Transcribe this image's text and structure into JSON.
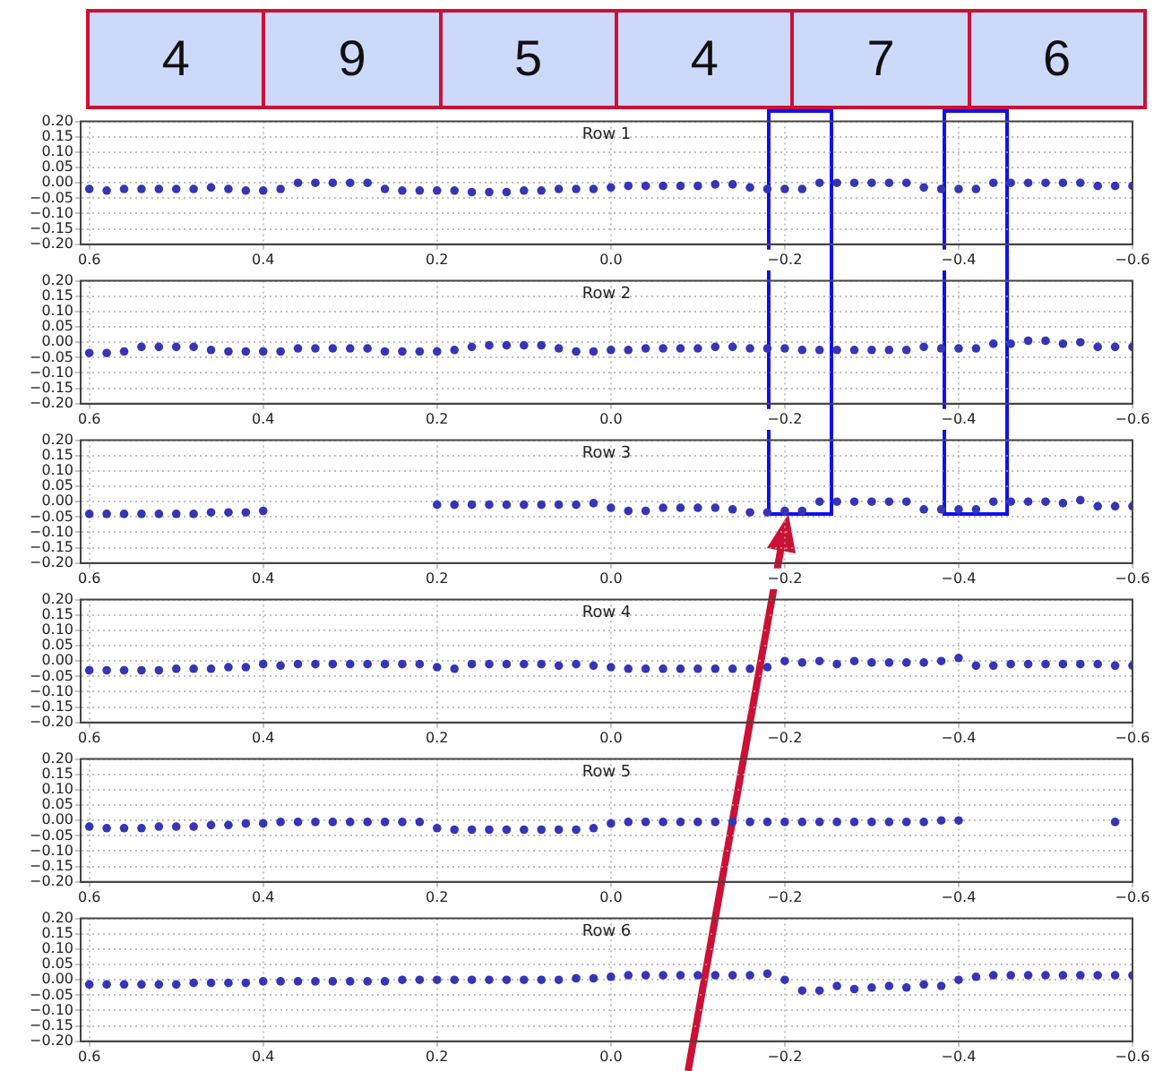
{
  "chart_data": [
    {
      "type": "other",
      "annotations": [
        "4",
        "9",
        "5",
        "4",
        "7",
        "6"
      ]
    },
    {
      "type": "scatter",
      "title": "Row 1",
      "color": "#3535b5",
      "marker": "circle",
      "grid": true,
      "x": [
        0.6,
        0.58,
        0.56,
        0.54,
        0.52,
        0.5,
        0.48,
        0.46,
        0.44,
        0.42,
        0.4,
        0.38,
        0.36,
        0.34,
        0.32,
        0.3,
        0.28,
        0.26,
        0.24,
        0.22,
        0.2,
        0.18,
        0.16,
        0.14,
        0.12,
        0.1,
        0.08,
        0.06,
        0.04,
        0.02,
        0,
        -0.02,
        -0.04,
        -0.06,
        -0.08,
        -0.1,
        -0.12,
        -0.14,
        -0.16,
        -0.18,
        -0.2,
        -0.22,
        -0.24,
        -0.26,
        -0.28,
        -0.3,
        -0.32,
        -0.34,
        -0.36,
        -0.38,
        -0.4,
        -0.42,
        -0.44,
        -0.46,
        -0.48,
        -0.5,
        -0.52,
        -0.54,
        -0.56,
        -0.58,
        -0.6
      ],
      "values": [
        -0.02,
        -0.025,
        -0.02,
        -0.02,
        -0.02,
        -0.02,
        -0.02,
        -0.015,
        -0.02,
        -0.025,
        -0.025,
        -0.02,
        0,
        0,
        0,
        0,
        0,
        -0.02,
        -0.025,
        -0.025,
        -0.025,
        -0.025,
        -0.03,
        -0.03,
        -0.03,
        -0.025,
        -0.025,
        -0.02,
        -0.02,
        -0.02,
        -0.015,
        -0.01,
        -0.01,
        -0.01,
        -0.01,
        -0.01,
        -0.005,
        -0.005,
        -0.015,
        -0.02,
        -0.02,
        -0.02,
        0,
        0,
        0,
        0,
        0,
        0,
        -0.015,
        -0.02,
        -0.02,
        -0.02,
        0,
        0,
        0,
        0,
        0,
        0,
        -0.01,
        -0.01,
        -0.01
      ],
      "xlim": [
        0.61,
        -0.6
      ],
      "xticks": [
        0.6,
        0.4,
        0.2,
        {
          "value": 0,
          "label": "0.0"
        },
        {
          "value": -0.2,
          "label": "−0.2"
        },
        {
          "value": -0.4,
          "label": "−0.4"
        },
        {
          "value": -0.6,
          "label": "−0.6"
        }
      ],
      "ylim": [
        -0.2,
        0.2
      ],
      "yticks": [
        {
          "value": -0.2,
          "label": "−0.20"
        },
        {
          "value": -0.15,
          "label": "−0.15"
        },
        {
          "value": -0.1,
          "label": "−0.10"
        },
        {
          "value": -0.05,
          "label": "−0.05"
        },
        {
          "value": 0,
          "label": "0.00"
        },
        {
          "value": 0.05,
          "label": "0.05"
        },
        {
          "value": 0.1,
          "label": "0.10"
        },
        {
          "value": 0.15,
          "label": "0.15"
        },
        {
          "value": 0.2,
          "label": "0.20"
        }
      ]
    },
    {
      "type": "scatter",
      "title": "Row 2",
      "color": "#3535b5",
      "marker": "circle",
      "grid": true,
      "x": [
        0.6,
        0.58,
        0.56,
        0.54,
        0.52,
        0.5,
        0.48,
        0.46,
        0.44,
        0.42,
        0.4,
        0.38,
        0.36,
        0.34,
        0.32,
        0.3,
        0.28,
        0.26,
        0.24,
        0.22,
        0.2,
        0.18,
        0.16,
        0.14,
        0.12,
        0.1,
        0.08,
        0.06,
        0.04,
        0.02,
        0,
        -0.02,
        -0.04,
        -0.06,
        -0.08,
        -0.1,
        -0.12,
        -0.14,
        -0.16,
        -0.18,
        -0.2,
        -0.22,
        -0.24,
        -0.26,
        -0.28,
        -0.3,
        -0.32,
        -0.34,
        -0.36,
        -0.38,
        -0.4,
        -0.42,
        -0.44,
        -0.46,
        -0.48,
        -0.5,
        -0.52,
        -0.54,
        -0.56,
        -0.58,
        -0.6
      ],
      "values": [
        -0.035,
        -0.035,
        -0.03,
        -0.015,
        -0.015,
        -0.015,
        -0.015,
        -0.025,
        -0.03,
        -0.03,
        -0.03,
        -0.03,
        -0.02,
        -0.02,
        -0.02,
        -0.02,
        -0.02,
        -0.03,
        -0.03,
        -0.03,
        -0.03,
        -0.025,
        -0.015,
        -0.01,
        -0.01,
        -0.01,
        -0.01,
        -0.02,
        -0.03,
        -0.03,
        -0.025,
        -0.025,
        -0.02,
        -0.02,
        -0.02,
        -0.02,
        -0.015,
        -0.015,
        -0.02,
        -0.02,
        -0.02,
        -0.025,
        -0.025,
        -0.025,
        -0.025,
        -0.025,
        -0.025,
        -0.025,
        -0.015,
        -0.02,
        -0.02,
        -0.02,
        -0.005,
        -0.005,
        0.005,
        0.005,
        -0.005,
        0,
        -0.015,
        -0.015,
        -0.015
      ],
      "xlim": [
        0.61,
        -0.6
      ],
      "xticks": [
        0.6,
        0.4,
        0.2,
        {
          "value": 0,
          "label": "0.0"
        },
        {
          "value": -0.2,
          "label": "−0.2"
        },
        {
          "value": -0.4,
          "label": "−0.4"
        },
        {
          "value": -0.6,
          "label": "−0.6"
        }
      ],
      "ylim": [
        -0.2,
        0.2
      ],
      "yticks": [
        {
          "value": -0.2,
          "label": "−0.20"
        },
        {
          "value": -0.15,
          "label": "−0.15"
        },
        {
          "value": -0.1,
          "label": "−0.10"
        },
        {
          "value": -0.05,
          "label": "−0.05"
        },
        {
          "value": 0,
          "label": "0.00"
        },
        {
          "value": 0.05,
          "label": "0.05"
        },
        {
          "value": 0.1,
          "label": "0.10"
        },
        {
          "value": 0.15,
          "label": "0.15"
        },
        {
          "value": 0.2,
          "label": "0.20"
        }
      ]
    },
    {
      "type": "scatter",
      "title": "Row 3",
      "color": "#3535b5",
      "marker": "circle",
      "grid": true,
      "x": [
        0.6,
        0.58,
        0.56,
        0.54,
        0.52,
        0.5,
        0.48,
        0.46,
        0.44,
        0.42,
        0.4,
        0.38,
        0.36,
        0.34,
        0.32,
        0.3,
        0.28,
        0.26,
        0.24,
        0.22,
        0.2,
        0.18,
        0.16,
        0.14,
        0.12,
        0.1,
        0.08,
        0.06,
        0.04,
        0.02,
        0,
        -0.02,
        -0.04,
        -0.06,
        -0.08,
        -0.1,
        -0.12,
        -0.14,
        -0.16,
        -0.18,
        -0.2,
        -0.22,
        -0.24,
        -0.26,
        -0.28,
        -0.3,
        -0.32,
        -0.34,
        -0.36,
        -0.38,
        -0.4,
        -0.42,
        -0.44,
        -0.46,
        -0.48,
        -0.5,
        -0.52,
        -0.54,
        -0.56,
        -0.58,
        -0.6
      ],
      "values": [
        -0.04,
        -0.04,
        -0.04,
        -0.04,
        -0.04,
        -0.04,
        -0.04,
        -0.035,
        -0.035,
        -0.035,
        -0.03,
        null,
        null,
        null,
        null,
        null,
        null,
        null,
        null,
        null,
        -0.01,
        -0.01,
        -0.01,
        -0.01,
        -0.01,
        -0.01,
        -0.01,
        -0.01,
        -0.01,
        -0.005,
        -0.02,
        -0.03,
        -0.03,
        -0.02,
        -0.02,
        -0.02,
        -0.02,
        -0.025,
        -0.035,
        -0.035,
        -0.03,
        -0.03,
        0,
        0,
        0,
        0,
        0,
        0,
        -0.025,
        -0.025,
        -0.025,
        -0.025,
        0,
        0,
        0,
        0,
        -0.005,
        0.005,
        -0.015,
        -0.015,
        -0.015
      ],
      "xlim": [
        0.61,
        -0.6
      ],
      "xticks": [
        0.6,
        0.4,
        0.2,
        {
          "value": 0,
          "label": "0.0"
        },
        {
          "value": -0.2,
          "label": "−0.2"
        },
        {
          "value": -0.4,
          "label": "−0.4"
        },
        {
          "value": -0.6,
          "label": "−0.6"
        }
      ],
      "ylim": [
        -0.2,
        0.2
      ],
      "yticks": [
        {
          "value": -0.2,
          "label": "−0.20"
        },
        {
          "value": -0.15,
          "label": "−0.15"
        },
        {
          "value": -0.1,
          "label": "−0.10"
        },
        {
          "value": -0.05,
          "label": "−0.05"
        },
        {
          "value": 0,
          "label": "0.00"
        },
        {
          "value": 0.05,
          "label": "0.05"
        },
        {
          "value": 0.1,
          "label": "0.10"
        },
        {
          "value": 0.15,
          "label": "0.15"
        },
        {
          "value": 0.2,
          "label": "0.20"
        }
      ]
    },
    {
      "type": "scatter",
      "title": "Row 4",
      "color": "#3535b5",
      "marker": "circle",
      "grid": true,
      "x": [
        0.6,
        0.58,
        0.56,
        0.54,
        0.52,
        0.5,
        0.48,
        0.46,
        0.44,
        0.42,
        0.4,
        0.38,
        0.36,
        0.34,
        0.32,
        0.3,
        0.28,
        0.26,
        0.24,
        0.22,
        0.2,
        0.18,
        0.16,
        0.14,
        0.12,
        0.1,
        0.08,
        0.06,
        0.04,
        0.02,
        0,
        -0.02,
        -0.04,
        -0.06,
        -0.08,
        -0.1,
        -0.12,
        -0.14,
        -0.16,
        -0.18,
        -0.2,
        -0.22,
        -0.24,
        -0.26,
        -0.28,
        -0.3,
        -0.32,
        -0.34,
        -0.36,
        -0.38,
        -0.4,
        -0.42,
        -0.44,
        -0.46,
        -0.48,
        -0.5,
        -0.52,
        -0.54,
        -0.56,
        -0.58,
        -0.6
      ],
      "values": [
        -0.03,
        -0.03,
        -0.03,
        -0.03,
        -0.03,
        -0.025,
        -0.025,
        -0.025,
        -0.02,
        -0.02,
        -0.01,
        -0.015,
        -0.01,
        -0.01,
        -0.01,
        -0.01,
        -0.01,
        -0.01,
        -0.01,
        -0.01,
        -0.02,
        -0.025,
        -0.01,
        -0.01,
        -0.01,
        -0.01,
        -0.01,
        -0.015,
        -0.01,
        -0.015,
        -0.02,
        -0.025,
        -0.025,
        -0.025,
        -0.025,
        -0.025,
        -0.025,
        -0.025,
        -0.025,
        -0.02,
        0,
        -0.005,
        0,
        -0.01,
        0,
        -0.005,
        -0.005,
        -0.005,
        -0.005,
        0,
        0.01,
        -0.015,
        -0.015,
        -0.01,
        -0.01,
        -0.01,
        -0.01,
        -0.01,
        -0.01,
        -0.015,
        -0.015
      ],
      "xlim": [
        0.61,
        -0.6
      ],
      "xticks": [
        0.6,
        0.4,
        0.2,
        {
          "value": 0,
          "label": "0.0"
        },
        {
          "value": -0.2,
          "label": "−0.2"
        },
        {
          "value": -0.4,
          "label": "−0.4"
        },
        {
          "value": -0.6,
          "label": "−0.6"
        }
      ],
      "ylim": [
        -0.2,
        0.2
      ],
      "yticks": [
        {
          "value": -0.2,
          "label": "−0.20"
        },
        {
          "value": -0.15,
          "label": "−0.15"
        },
        {
          "value": -0.1,
          "label": "−0.10"
        },
        {
          "value": -0.05,
          "label": "−0.05"
        },
        {
          "value": 0,
          "label": "0.00"
        },
        {
          "value": 0.05,
          "label": "0.05"
        },
        {
          "value": 0.1,
          "label": "0.10"
        },
        {
          "value": 0.15,
          "label": "0.15"
        },
        {
          "value": 0.2,
          "label": "0.20"
        }
      ]
    },
    {
      "type": "scatter",
      "title": "Row 5",
      "color": "#3535b5",
      "marker": "circle",
      "grid": true,
      "x": [
        0.6,
        0.58,
        0.56,
        0.54,
        0.52,
        0.5,
        0.48,
        0.46,
        0.44,
        0.42,
        0.4,
        0.38,
        0.36,
        0.34,
        0.32,
        0.3,
        0.28,
        0.26,
        0.24,
        0.22,
        0.2,
        0.18,
        0.16,
        0.14,
        0.12,
        0.1,
        0.08,
        0.06,
        0.04,
        0.02,
        0,
        -0.02,
        -0.04,
        -0.06,
        -0.08,
        -0.1,
        -0.12,
        -0.14,
        -0.16,
        -0.18,
        -0.2,
        -0.22,
        -0.24,
        -0.26,
        -0.28,
        -0.3,
        -0.32,
        -0.34,
        -0.36,
        -0.38,
        -0.4,
        -0.42,
        -0.44,
        -0.46,
        -0.48,
        -0.5,
        -0.52,
        -0.54,
        -0.56,
        -0.58
      ],
      "values": [
        -0.02,
        -0.025,
        -0.025,
        -0.025,
        -0.02,
        -0.02,
        -0.02,
        -0.015,
        -0.015,
        -0.01,
        -0.01,
        -0.005,
        -0.005,
        -0.005,
        -0.005,
        -0.005,
        -0.005,
        -0.005,
        -0.005,
        -0.005,
        -0.025,
        -0.03,
        -0.03,
        -0.03,
        -0.03,
        -0.03,
        -0.03,
        -0.03,
        -0.03,
        -0.025,
        -0.01,
        -0.005,
        -0.005,
        -0.005,
        -0.005,
        -0.005,
        -0.005,
        -0.005,
        -0.005,
        -0.005,
        -0.005,
        -0.005,
        -0.005,
        -0.005,
        -0.005,
        -0.005,
        -0.005,
        -0.005,
        -0.005,
        0,
        0,
        null,
        null,
        null,
        null,
        null,
        null,
        null,
        null,
        -0.005
      ],
      "xlim": [
        0.61,
        -0.6
      ],
      "xticks": [
        0.6,
        0.4,
        0.2,
        {
          "value": 0,
          "label": "0.0"
        },
        {
          "value": -0.2,
          "label": "−0.2"
        },
        {
          "value": -0.4,
          "label": "−0.4"
        },
        {
          "value": -0.6,
          "label": "−0.6"
        }
      ],
      "ylim": [
        -0.2,
        0.2
      ],
      "yticks": [
        {
          "value": -0.2,
          "label": "−0.20"
        },
        {
          "value": -0.15,
          "label": "−0.15"
        },
        {
          "value": -0.1,
          "label": "−0.10"
        },
        {
          "value": -0.05,
          "label": "−0.05"
        },
        {
          "value": 0,
          "label": "0.00"
        },
        {
          "value": 0.05,
          "label": "0.05"
        },
        {
          "value": 0.1,
          "label": "0.10"
        },
        {
          "value": 0.15,
          "label": "0.15"
        },
        {
          "value": 0.2,
          "label": "0.20"
        }
      ]
    },
    {
      "type": "scatter",
      "title": "Row 6",
      "color": "#3535b5",
      "marker": "circle",
      "grid": true,
      "x": [
        0.6,
        0.58,
        0.56,
        0.54,
        0.52,
        0.5,
        0.48,
        0.46,
        0.44,
        0.42,
        0.4,
        0.38,
        0.36,
        0.34,
        0.32,
        0.3,
        0.28,
        0.26,
        0.24,
        0.22,
        0.2,
        0.18,
        0.16,
        0.14,
        0.12,
        0.1,
        0.08,
        0.06,
        0.04,
        0.02,
        0,
        -0.02,
        -0.04,
        -0.06,
        -0.08,
        -0.1,
        -0.12,
        -0.14,
        -0.16,
        -0.18,
        -0.2,
        -0.22,
        -0.24,
        -0.26,
        -0.28,
        -0.3,
        -0.32,
        -0.34,
        -0.36,
        -0.38,
        -0.4,
        -0.42,
        -0.44,
        -0.46,
        -0.48,
        -0.5,
        -0.52,
        -0.54,
        -0.56,
        -0.58,
        -0.6
      ],
      "values": [
        -0.015,
        -0.015,
        -0.015,
        -0.015,
        -0.015,
        -0.015,
        -0.01,
        -0.01,
        -0.01,
        -0.01,
        -0.005,
        -0.005,
        -0.005,
        -0.005,
        -0.005,
        -0.005,
        -0.005,
        -0.005,
        0,
        0,
        0,
        0,
        0,
        0,
        0,
        0,
        0,
        0,
        0.005,
        0.005,
        0.01,
        0.015,
        0.015,
        0.015,
        0.015,
        0.015,
        0.015,
        0.015,
        0.015,
        0.02,
        0,
        -0.035,
        -0.035,
        -0.02,
        -0.03,
        -0.025,
        -0.02,
        -0.025,
        -0.015,
        -0.02,
        0,
        0.01,
        0.015,
        0.015,
        0.015,
        0.015,
        0.015,
        0.015,
        0.015,
        0.015,
        0.015
      ],
      "xlim": [
        0.61,
        -0.6
      ],
      "xticks": [
        0.6,
        0.4,
        0.2,
        {
          "value": 0,
          "label": "0.0"
        },
        {
          "value": -0.2,
          "label": "−0.2"
        },
        {
          "value": -0.4,
          "label": "−0.4"
        },
        {
          "value": -0.6,
          "label": "−0.6"
        }
      ],
      "ylim": [
        -0.2,
        0.2
      ],
      "yticks": [
        {
          "value": -0.2,
          "label": "−0.20"
        },
        {
          "value": -0.15,
          "label": "−0.15"
        },
        {
          "value": -0.1,
          "label": "−0.10"
        },
        {
          "value": -0.05,
          "label": "−0.05"
        },
        {
          "value": 0,
          "label": "0.00"
        },
        {
          "value": 0.05,
          "label": "0.05"
        },
        {
          "value": 0.1,
          "label": "0.10"
        },
        {
          "value": 0.15,
          "label": "0.15"
        },
        {
          "value": 0.2,
          "label": "0.20"
        }
      ]
    }
  ]
}
